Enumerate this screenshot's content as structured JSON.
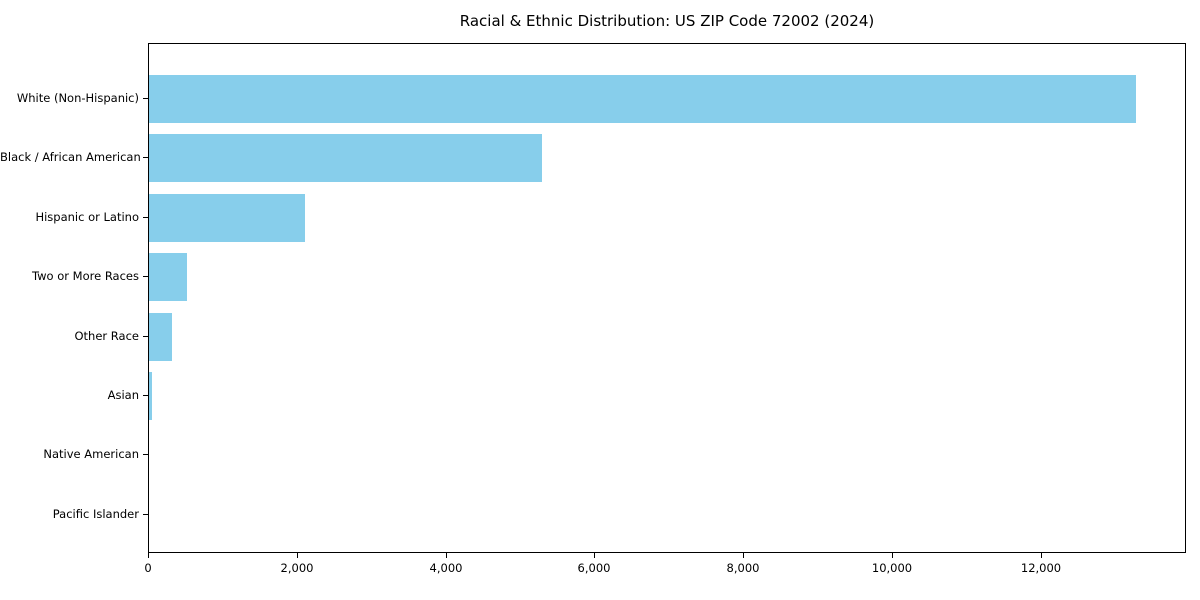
{
  "title": "Racial & Ethnic Distribution: US ZIP Code 72002 (2024)",
  "chart_data": {
    "type": "bar",
    "orientation": "horizontal",
    "title": "Racial & Ethnic Distribution: US ZIP Code 72002 (2024)",
    "xlabel": "",
    "ylabel": "",
    "categories": [
      "White (Non-Hispanic)",
      "Black / African American",
      "Hispanic or Latino",
      "Two or More Races",
      "Other Race",
      "Asian",
      "Native American",
      "Pacific Islander"
    ],
    "values": [
      13270,
      5280,
      2100,
      510,
      310,
      40,
      0,
      0
    ],
    "xlim": [
      0,
      13950
    ],
    "x_ticks": [
      0,
      2000,
      4000,
      6000,
      8000,
      10000,
      12000
    ],
    "x_tick_labels": [
      "0",
      "2,000",
      "4,000",
      "6,000",
      "8,000",
      "10,000",
      "12,000"
    ],
    "bar_color": "#87CEEB",
    "axis_color": "#000000",
    "text_color": "#000000",
    "background_color": "#ffffff",
    "grid": false,
    "legend": null
  }
}
